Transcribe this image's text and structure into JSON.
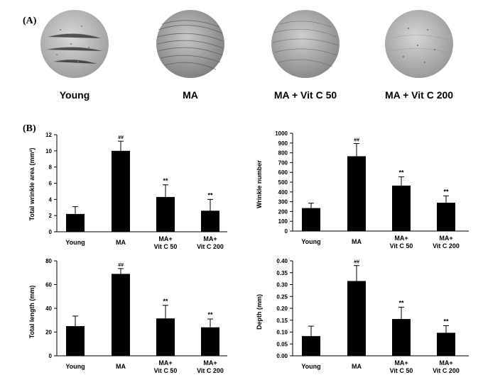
{
  "panel_a": {
    "label": "(A)",
    "samples": [
      "Young",
      "MA",
      "MA + Vit C 50",
      "MA + Vit C 200"
    ]
  },
  "panel_b": {
    "label": "(B)"
  },
  "chart_data": [
    {
      "type": "bar",
      "ylabel": "Total wrinkle area (mm²)",
      "categories": [
        [
          "Young"
        ],
        [
          "MA"
        ],
        [
          "MA+",
          "Vit C 50"
        ],
        [
          "MA+",
          "Vit C 200"
        ]
      ],
      "values": [
        2.2,
        10.0,
        4.3,
        2.6
      ],
      "errors": [
        0.9,
        1.2,
        1.5,
        1.4
      ],
      "annotations": [
        "",
        "##",
        "**",
        "**"
      ],
      "ylim": [
        0,
        12
      ],
      "yticks": [
        "0",
        "2",
        "4",
        "6",
        "8",
        "10",
        "12"
      ]
    },
    {
      "type": "bar",
      "ylabel": "Wrinkle number",
      "categories": [
        [
          "Young"
        ],
        [
          "MA"
        ],
        [
          "MA+",
          "Vit C 50"
        ],
        [
          "MA+",
          "Vit C 200"
        ]
      ],
      "values": [
        235,
        765,
        465,
        290
      ],
      "errors": [
        50,
        130,
        90,
        70
      ],
      "annotations": [
        "",
        "##",
        "**",
        "**"
      ],
      "ylim": [
        0,
        1000
      ],
      "yticks": [
        "0",
        "100",
        "200",
        "300",
        "400",
        "500",
        "600",
        "700",
        "800",
        "900",
        "1000"
      ]
    },
    {
      "type": "bar",
      "ylabel": "Total length (mm)",
      "categories": [
        [
          "Young"
        ],
        [
          "MA"
        ],
        [
          "MA+",
          "Vit C 50"
        ],
        [
          "MA+",
          "Vit C 200"
        ]
      ],
      "values": [
        25,
        69,
        31.5,
        24
      ],
      "errors": [
        8.5,
        4.5,
        11,
        7
      ],
      "annotations": [
        "",
        "##",
        "**",
        "**"
      ],
      "ylim": [
        0,
        80
      ],
      "yticks": [
        "0",
        "20",
        "40",
        "60",
        "80"
      ]
    },
    {
      "type": "bar",
      "ylabel": "Depth (mm)",
      "categories": [
        [
          "Young"
        ],
        [
          "MA"
        ],
        [
          "MA+",
          "Vit C 50"
        ],
        [
          "MA+",
          "Vit C 200"
        ]
      ],
      "values": [
        0.083,
        0.315,
        0.155,
        0.097
      ],
      "errors": [
        0.042,
        0.065,
        0.05,
        0.03
      ],
      "annotations": [
        "",
        "##",
        "**",
        "**"
      ],
      "ylim": [
        0,
        0.4
      ],
      "yticks": [
        "0.00",
        "0.05",
        "0.10",
        "0.15",
        "0.20",
        "0.25",
        "0.30",
        "0.35",
        "0.40"
      ]
    }
  ]
}
